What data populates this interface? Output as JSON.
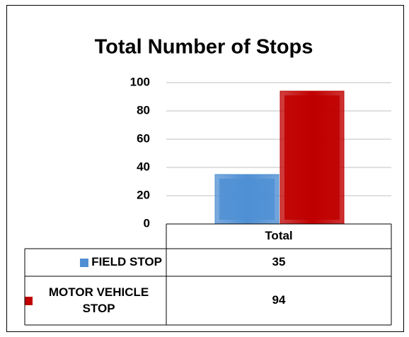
{
  "chart_data": {
    "type": "bar",
    "title": "Total Number of Stops",
    "categories": [
      "Total"
    ],
    "series": [
      {
        "name": "FIELD STOP",
        "color": "#4f8fd3",
        "values": [
          35
        ]
      },
      {
        "name": "MOTOR VEHICLE STOP",
        "color": "#c00000",
        "values": [
          94
        ]
      }
    ],
    "ylim": [
      0,
      100
    ],
    "yticks": [
      0,
      20,
      40,
      60,
      80,
      100
    ],
    "grid": true
  }
}
